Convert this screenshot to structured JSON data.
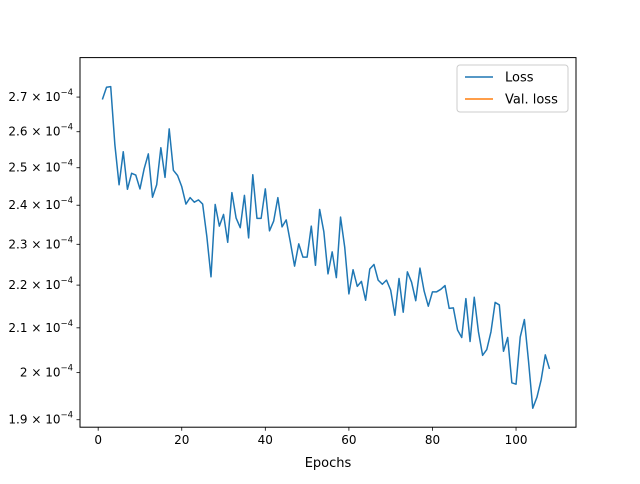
{
  "chart_data": {
    "type": "line",
    "xlabel": "Epochs",
    "ylabel": "",
    "title": "",
    "xlim": [
      -4.35,
      114.35
    ],
    "ylim": [
      0.00018846,
      0.00028186
    ],
    "yscale": "log",
    "grid": false,
    "legend_placement": "top-right",
    "xticks": [
      {
        "value": 0,
        "label": "0"
      },
      {
        "value": 20,
        "label": "20"
      },
      {
        "value": 40,
        "label": "40"
      },
      {
        "value": 60,
        "label": "60"
      },
      {
        "value": 80,
        "label": "80"
      },
      {
        "value": 100,
        "label": "100"
      }
    ],
    "yticks": [
      {
        "value": 0.00019,
        "mantissa": "1.9",
        "base": "× 10",
        "exponent": "−4"
      },
      {
        "value": 0.0002,
        "mantissa": "2",
        "base": "× 10",
        "exponent": "−4"
      },
      {
        "value": 0.00021,
        "mantissa": "2.1",
        "base": "× 10",
        "exponent": "−4"
      },
      {
        "value": 0.00022,
        "mantissa": "2.2",
        "base": "× 10",
        "exponent": "−4"
      },
      {
        "value": 0.00023,
        "mantissa": "2.3",
        "base": "× 10",
        "exponent": "−4"
      },
      {
        "value": 0.00024,
        "mantissa": "2.4",
        "base": "× 10",
        "exponent": "−4"
      },
      {
        "value": 0.00025,
        "mantissa": "2.5",
        "base": "× 10",
        "exponent": "−4"
      },
      {
        "value": 0.00026,
        "mantissa": "2.6",
        "base": "× 10",
        "exponent": "−4"
      },
      {
        "value": 0.00027,
        "mantissa": "2.7",
        "base": "× 10",
        "exponent": "−4"
      }
    ],
    "series": [
      {
        "name": "Loss",
        "color": "#1f77b4",
        "x": [
          1,
          2,
          3,
          4,
          5,
          6,
          7,
          8,
          9,
          10,
          11,
          12,
          13,
          14,
          15,
          16,
          17,
          18,
          19,
          20,
          21,
          22,
          23,
          24,
          25,
          26,
          27,
          28,
          29,
          30,
          31,
          32,
          33,
          34,
          35,
          36,
          37,
          38,
          39,
          40,
          41,
          42,
          43,
          44,
          45,
          46,
          47,
          48,
          49,
          50,
          51,
          52,
          53,
          54,
          55,
          56,
          57,
          58,
          59,
          60,
          61,
          62,
          63,
          64,
          65,
          66,
          67,
          68,
          69,
          70,
          71,
          72,
          73,
          74,
          75,
          76,
          77,
          78,
          79,
          80,
          81,
          82,
          83,
          84,
          85,
          86,
          87,
          88,
          89,
          90,
          91,
          92,
          93,
          94,
          95,
          96,
          97,
          98,
          99,
          100,
          101,
          102,
          103,
          104,
          105,
          106,
          107,
          108
        ],
        "values": [
          0.0002693,
          0.0002729,
          0.0002731,
          0.0002563,
          0.0002454,
          0.0002544,
          0.0002442,
          0.0002485,
          0.000248,
          0.0002443,
          0.0002497,
          0.0002538,
          0.0002421,
          0.0002454,
          0.0002555,
          0.0002474,
          0.0002608,
          0.0002493,
          0.0002479,
          0.0002449,
          0.0002403,
          0.000242,
          0.0002408,
          0.0002414,
          0.0002403,
          0.000232,
          0.000222,
          0.0002402,
          0.0002346,
          0.0002376,
          0.0002305,
          0.0002433,
          0.0002367,
          0.0002342,
          0.0002426,
          0.0002316,
          0.0002481,
          0.0002366,
          0.0002366,
          0.0002443,
          0.0002334,
          0.0002359,
          0.000242,
          0.0002344,
          0.0002362,
          0.0002305,
          0.0002246,
          0.0002301,
          0.0002268,
          0.0002268,
          0.0002346,
          0.0002248,
          0.0002389,
          0.0002332,
          0.0002227,
          0.0002281,
          0.0002218,
          0.0002369,
          0.0002293,
          0.0002179,
          0.0002237,
          0.0002197,
          0.0002209,
          0.0002164,
          0.0002239,
          0.000225,
          0.0002212,
          0.0002202,
          0.0002212,
          0.0002188,
          0.0002129,
          0.0002216,
          0.0002136,
          0.0002232,
          0.0002207,
          0.0002163,
          0.0002241,
          0.0002186,
          0.000215,
          0.0002184,
          0.0002184,
          0.000219,
          0.0002199,
          0.0002145,
          0.0002146,
          0.0002095,
          0.0002078,
          0.0002168,
          0.0002069,
          0.0002171,
          0.0002091,
          0.0002038,
          0.0002051,
          0.0002091,
          0.0002159,
          0.0002153,
          0.0002047,
          0.0002078,
          0.0001978,
          0.0001975,
          0.0002079,
          0.0002119,
          0.0002024,
          0.0001924,
          0.0001947,
          0.0001984,
          0.0002039,
          0.0002008
        ]
      },
      {
        "name": "Val. loss",
        "color": "#ff7f0e",
        "x": [],
        "values": []
      }
    ]
  }
}
